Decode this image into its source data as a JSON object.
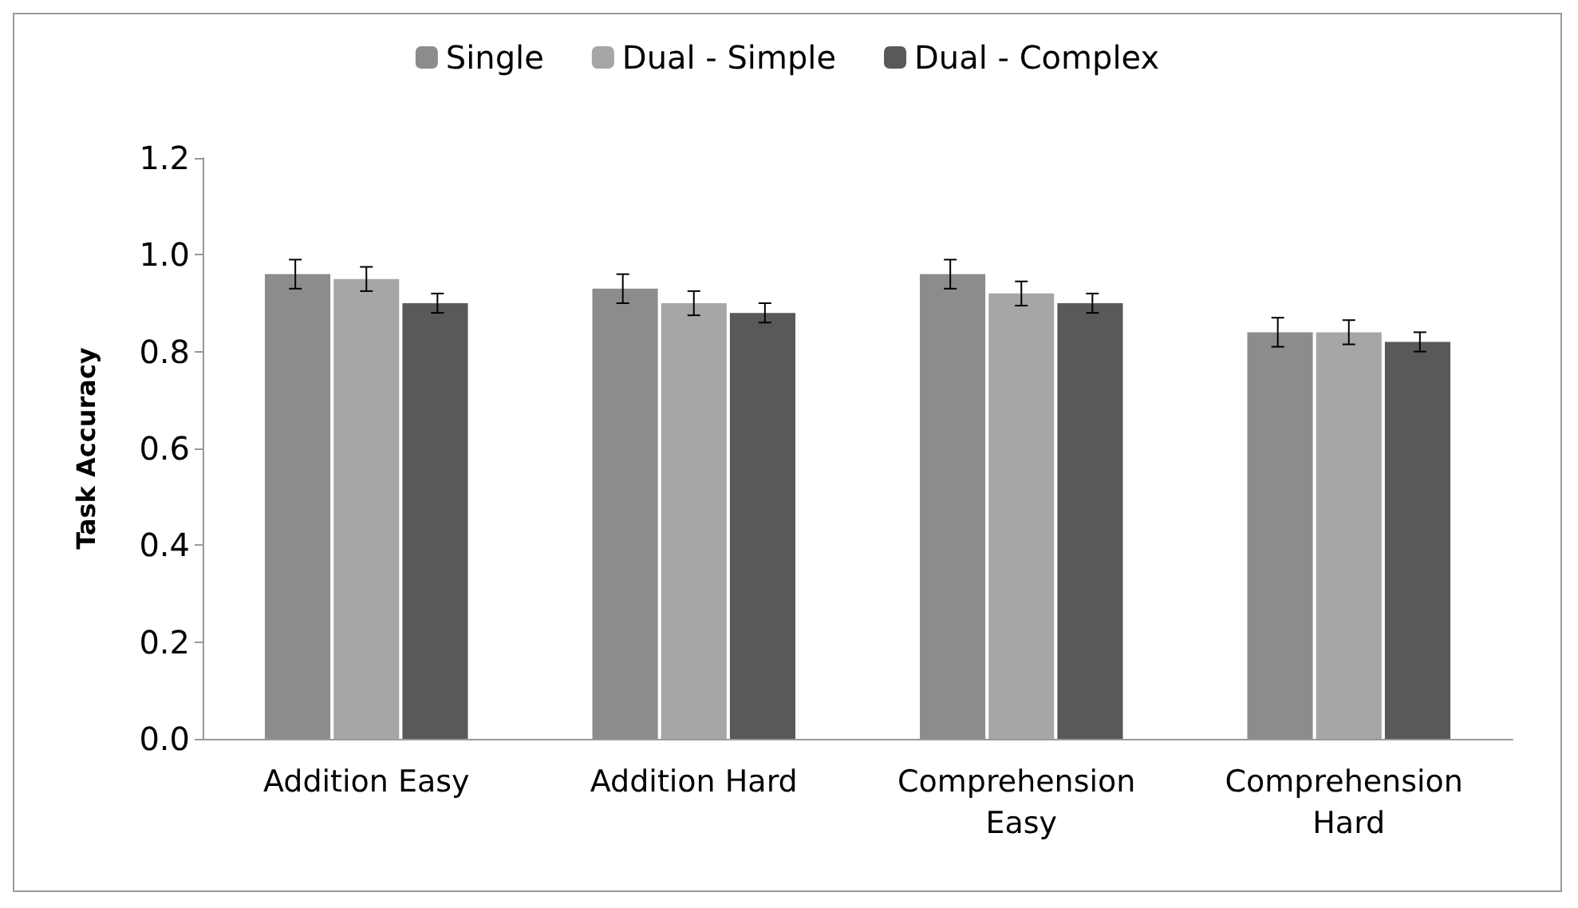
{
  "chart_data": {
    "type": "bar",
    "ylabel": "Task Accuracy",
    "categories": [
      "Addition Easy",
      "Addition Hard",
      "Comprehension Easy",
      "Comprehension Hard"
    ],
    "series": [
      {
        "name": "Single",
        "color": "#8c8c8c",
        "values": [
          0.96,
          0.93,
          0.96,
          0.84
        ],
        "errors": [
          0.03,
          0.03,
          0.03,
          0.03
        ]
      },
      {
        "name": "Dual - Simple",
        "color": "#a6a6a6",
        "values": [
          0.95,
          0.9,
          0.92,
          0.84
        ],
        "errors": [
          0.025,
          0.025,
          0.025,
          0.025
        ]
      },
      {
        "name": "Dual - Complex",
        "color": "#595959",
        "values": [
          0.9,
          0.88,
          0.9,
          0.82
        ],
        "errors": [
          0.02,
          0.02,
          0.02,
          0.02
        ]
      }
    ],
    "ylim": [
      0,
      1.2
    ],
    "yticks": [
      {
        "value": 0,
        "label": "0.0"
      },
      0.2,
      0.4,
      0.6,
      0.8,
      {
        "value": 1,
        "label": "1.0"
      },
      1.2
    ],
    "grid": false,
    "legend": "top"
  }
}
